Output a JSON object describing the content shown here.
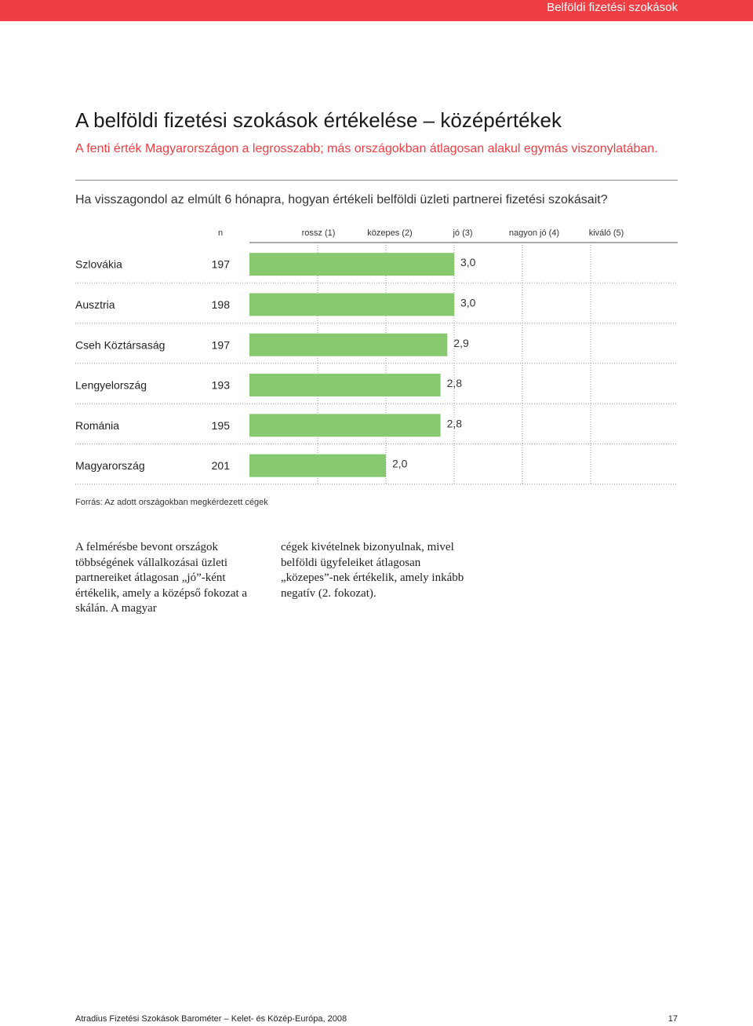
{
  "header": {
    "section_title": "Belföldi fizetési szokások",
    "accent_color": "#ef3e44"
  },
  "title": "A belföldi fizetési szokások értékelése – középértékek",
  "subtitle": "A fenti érték Magyarországon a legrosszabb; más országokban átlagosan alakul egymás viszonylatában.",
  "question": "Ha visszagondol az elmúlt 6 hónapra, hogyan értékeli belföldi üzleti partnerei fizetési szokásait?",
  "chart_data": {
    "type": "bar",
    "orientation": "horizontal",
    "n_header": "n",
    "scale_labels": [
      "rossz (1)",
      "közepes (2)",
      "jó (3)",
      "nagyon jó (4)",
      "kiváló (5)"
    ],
    "categories": [
      "Szlovákia",
      "Ausztria",
      "Cseh Köztársaság",
      "Lengyelország",
      "Románia",
      "Magyarország"
    ],
    "n": [
      "197",
      "198",
      "197",
      "193",
      "195",
      "201"
    ],
    "values": [
      3.0,
      3.0,
      2.9,
      2.8,
      2.8,
      2.0
    ],
    "value_labels": [
      "3,0",
      "3,0",
      "2,9",
      "2,8",
      "2,8",
      "2,0"
    ],
    "xlim": [
      0,
      5
    ],
    "bar_color": "#88c86e",
    "grid": true
  },
  "source": "Forrás: Az adott országokban megkérdezett cégek",
  "body": {
    "col1": "A felmérésbe bevont országok többségének vállalkozásai üzleti partnereiket átlagosan „jó”-ként értékelik, amely a középső fokozat a skálán. A magyar",
    "col2": "cégek kivételnek bizonyulnak, mivel belföldi ügyfeleiket átlagosan „közepes”-nek értékelik, amely inkább negatív (2. fokozat)."
  },
  "footer": {
    "left": "Atradius Fizetési Szokások Barométer – Kelet- és Közép-Európa, 2008",
    "page": "17"
  }
}
